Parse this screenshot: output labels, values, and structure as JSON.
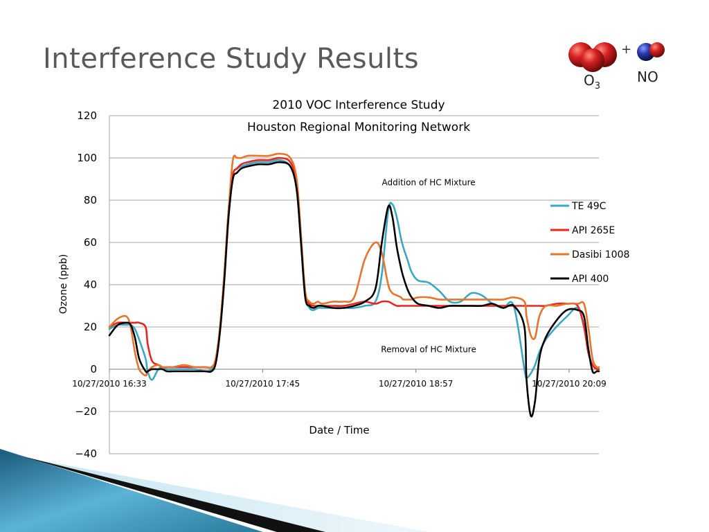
{
  "slide": {
    "title": "Interference Study Results",
    "molecule_labels": {
      "plus": "+",
      "o3": "O",
      "o3_sub": "3",
      "no": "NO"
    }
  },
  "chart_data": {
    "type": "line",
    "title": "2010 VOC Interference Study",
    "subtitle": "Houston Regional Monitoring Network",
    "xlabel": "Date / Time",
    "ylabel": "Ozone (ppb)",
    "ylim": [
      -40,
      120
    ],
    "yticks": [
      "120",
      "100",
      "80",
      "60",
      "40",
      "20",
      "0",
      "−20",
      "−40"
    ],
    "ytick_values": [
      120,
      100,
      80,
      60,
      40,
      20,
      0,
      -20,
      -40
    ],
    "xlim_minutes": [
      0,
      230
    ],
    "xtick_labels": [
      "10/27/2010 16:33",
      "10/27/2010 17:45",
      "10/27/2010 18:57",
      "10/27/2010 20:09"
    ],
    "xtick_minutes": [
      0,
      72,
      144,
      216
    ],
    "grid": true,
    "legend_position": "right",
    "annotations": [
      {
        "text": "Addition of  HC Mixture",
        "x": 150,
        "y": 87
      },
      {
        "text": "Removal of  HC Mixture",
        "x": 150,
        "y": 8
      }
    ],
    "x": [
      0,
      4,
      8,
      10,
      12,
      14,
      17,
      18,
      20,
      23,
      25,
      27,
      30,
      35,
      40,
      45,
      48,
      50,
      52,
      54,
      56,
      58,
      60,
      62,
      65,
      70,
      75,
      80,
      85,
      88,
      90,
      92,
      94,
      96,
      98,
      100,
      105,
      110,
      115,
      120,
      125,
      128,
      131,
      133,
      135,
      137,
      138,
      140,
      142,
      145,
      150,
      155,
      160,
      165,
      170,
      175,
      180,
      185,
      190,
      195,
      196,
      198,
      200,
      202,
      205,
      210,
      215,
      220,
      223,
      225,
      227,
      229,
      230
    ],
    "series": [
      {
        "name": "TE 49C",
        "color": "#3aa6c4",
        "values": [
          19,
          21,
          21,
          21,
          19,
          14,
          5,
          -1,
          -5,
          0,
          1,
          0,
          0,
          0,
          0,
          -1,
          0,
          5,
          20,
          45,
          75,
          92,
          95,
          96,
          97,
          98,
          98,
          99,
          96,
          85,
          60,
          35,
          29,
          28,
          29,
          29,
          29,
          29,
          29,
          30,
          32,
          45,
          75,
          78,
          72,
          62,
          58,
          52,
          46,
          42,
          41,
          37,
          32,
          32,
          36,
          35,
          31,
          29,
          30,
          0,
          -4,
          -2,
          2,
          8,
          14,
          20,
          25,
          29,
          20,
          8,
          2,
          0,
          0
        ]
      },
      {
        "name": "API 265E",
        "color": "#e8251e",
        "values": [
          20,
          22,
          22,
          22,
          22,
          22,
          20,
          12,
          4,
          2,
          1,
          1,
          1,
          1,
          1,
          1,
          1,
          5,
          20,
          45,
          75,
          92,
          95,
          97,
          98,
          99,
          99,
          100,
          98,
          88,
          62,
          36,
          31,
          30,
          30,
          30,
          30,
          30,
          31,
          32,
          31,
          32,
          32,
          31,
          30,
          30,
          30,
          30,
          30,
          30,
          30,
          30,
          30,
          30,
          30,
          30,
          30,
          30,
          30,
          30,
          30,
          30,
          30,
          30,
          30,
          31,
          31,
          30,
          20,
          8,
          2,
          0,
          0
        ]
      },
      {
        "name": "Dasibi 1008",
        "color": "#e8732a",
        "values": [
          20,
          24,
          25,
          20,
          8,
          0,
          -3,
          -1,
          1,
          2,
          1,
          1,
          1,
          2,
          1,
          1,
          1,
          5,
          20,
          45,
          75,
          99,
          100,
          100,
          101,
          101,
          101,
          102,
          100,
          90,
          64,
          37,
          32,
          31,
          32,
          31,
          32,
          32,
          34,
          52,
          60,
          55,
          40,
          36,
          35,
          34,
          33,
          33,
          33,
          34,
          34,
          33,
          33,
          33,
          33,
          33,
          33,
          33,
          34,
          32,
          25,
          16,
          15,
          25,
          30,
          30,
          31,
          31,
          31,
          20,
          5,
          1,
          1
        ]
      },
      {
        "name": "API 400",
        "color": "#000000",
        "values": [
          16,
          21,
          22,
          21,
          15,
          5,
          -1,
          -1,
          0,
          0,
          0,
          -1,
          -1,
          -1,
          -1,
          -1,
          -1,
          3,
          18,
          42,
          72,
          90,
          93,
          95,
          96,
          97,
          97,
          98,
          96,
          85,
          60,
          34,
          30,
          29,
          30,
          30,
          29,
          29,
          30,
          32,
          38,
          60,
          77,
          72,
          58,
          48,
          44,
          38,
          34,
          31,
          30,
          29,
          30,
          30,
          30,
          30,
          31,
          29,
          30,
          20,
          -5,
          -22,
          -15,
          5,
          15,
          23,
          28,
          28,
          25,
          10,
          -1,
          -1,
          -1
        ]
      }
    ]
  },
  "colors": {
    "title": "#595959",
    "gridline": "#a6a6a6",
    "o3_sphere": "#d42020",
    "no_n": "#2a3ab0",
    "no_o": "#d42020",
    "ribbon_dark": "#1a5a7a",
    "ribbon_light": "#5bb3d6"
  },
  "icons": {
    "molecule": "o3-no-molecule-icon"
  }
}
